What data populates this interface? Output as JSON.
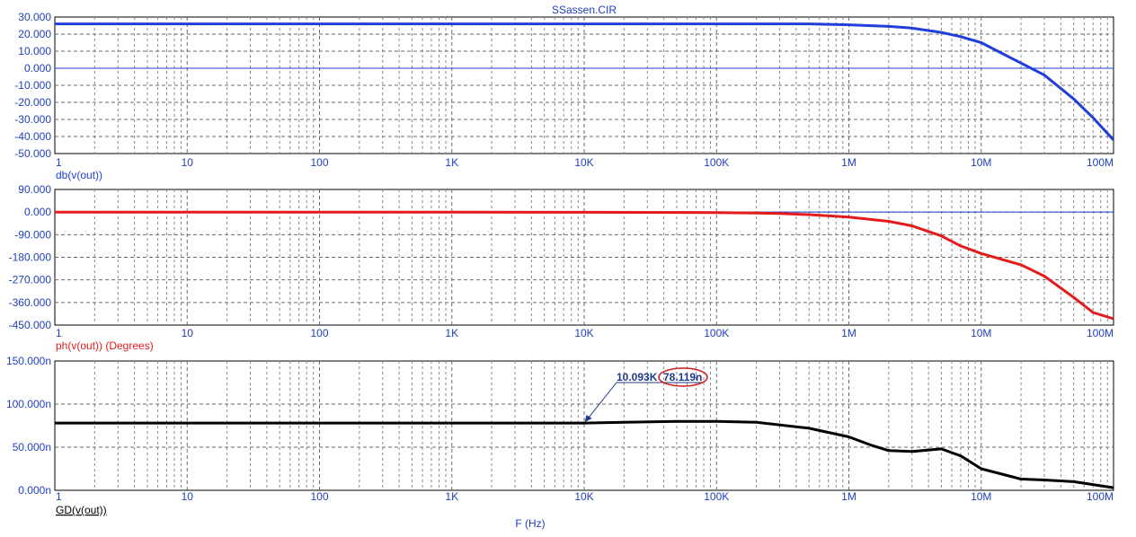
{
  "chart_data": {
    "title": "SSassen.CIR",
    "xlabel": "F (Hz)",
    "xscale": "log",
    "xlim": [
      1,
      100000000
    ],
    "xticks": [
      {
        "v": 1,
        "label": "1"
      },
      {
        "v": 10,
        "label": "10"
      },
      {
        "v": 100,
        "label": "100"
      },
      {
        "v": 1000,
        "label": "1K"
      },
      {
        "v": 10000,
        "label": "10K"
      },
      {
        "v": 100000,
        "label": "100K"
      },
      {
        "v": 1000000,
        "label": "1M"
      },
      {
        "v": 10000000,
        "label": "10M"
      },
      {
        "v": 100000000,
        "label": "100M"
      }
    ],
    "grid": true,
    "plots": [
      {
        "type": "line",
        "ylabel": "db(v(out))",
        "ylim": [
          -50,
          30
        ],
        "color": "#1f3fd6",
        "yticks": [
          {
            "v": 30,
            "label": "30.000"
          },
          {
            "v": 20,
            "label": "20.000"
          },
          {
            "v": 10,
            "label": "10.000"
          },
          {
            "v": 0,
            "label": "0.000"
          },
          {
            "v": -10,
            "label": "-10.000"
          },
          {
            "v": -20,
            "label": "-20.000"
          },
          {
            "v": -30,
            "label": "-30.000"
          },
          {
            "v": -40,
            "label": "-40.000"
          },
          {
            "v": -50,
            "label": "-50.000"
          }
        ],
        "zero_line": true,
        "x": [
          1,
          10,
          100,
          1000,
          10000,
          100000,
          500000,
          1000000,
          2000000,
          3000000,
          5000000,
          7000000,
          10000000,
          20000000,
          30000000,
          50000000,
          70000000,
          100000000
        ],
        "y": [
          26,
          26,
          26,
          26,
          26,
          26,
          26,
          25.5,
          24.5,
          23.5,
          21,
          18.5,
          15,
          3,
          -4,
          -18,
          -29,
          -42
        ]
      },
      {
        "type": "line",
        "ylabel": "ph(v(out)) (Degrees)",
        "ylim": [
          -450,
          90
        ],
        "color": "#e31b1b",
        "yticks": [
          {
            "v": 90,
            "label": "90.000"
          },
          {
            "v": 0,
            "label": "0.000"
          },
          {
            "v": -90,
            "label": "-90.000"
          },
          {
            "v": -180,
            "label": "-180.000"
          },
          {
            "v": -270,
            "label": "-270.000"
          },
          {
            "v": -360,
            "label": "-360.000"
          },
          {
            "v": -450,
            "label": "-450.000"
          }
        ],
        "zero_line": true,
        "x": [
          1,
          10,
          100,
          1000,
          10000,
          100000,
          200000,
          300000,
          500000,
          1000000,
          2000000,
          3000000,
          5000000,
          7000000,
          10000000,
          20000000,
          30000000,
          50000000,
          70000000,
          100000000
        ],
        "y": [
          0,
          0,
          0,
          -0.5,
          -1,
          -2,
          -4,
          -6,
          -10,
          -20,
          -37,
          -55,
          -95,
          -135,
          -165,
          -210,
          -255,
          -340,
          -400,
          -425
        ]
      },
      {
        "type": "line",
        "ylabel": "GD(v(out))",
        "ylim": [
          0,
          150
        ],
        "color": "#000000",
        "yticks": [
          {
            "v": 150,
            "label": "150.000n"
          },
          {
            "v": 100,
            "label": "100.000n"
          },
          {
            "v": 50,
            "label": "50.000n"
          },
          {
            "v": 0,
            "label": "0.000n"
          }
        ],
        "zero_line": false,
        "x": [
          1,
          10,
          100,
          1000,
          10000,
          20000,
          50000,
          100000,
          200000,
          500000,
          1000000,
          1500000,
          2000000,
          3000000,
          5000000,
          7000000,
          10000000,
          20000000,
          30000000,
          50000000,
          100000000
        ],
        "y": [
          78,
          78,
          78,
          78,
          78,
          79,
          80,
          80,
          79,
          72,
          62,
          52,
          46,
          45,
          48,
          40,
          25,
          13,
          12,
          10,
          3
        ],
        "annotation": {
          "x": 10093,
          "y": 78.119,
          "x_label": "10.093K",
          "y_label": "78.119n"
        }
      }
    ]
  }
}
